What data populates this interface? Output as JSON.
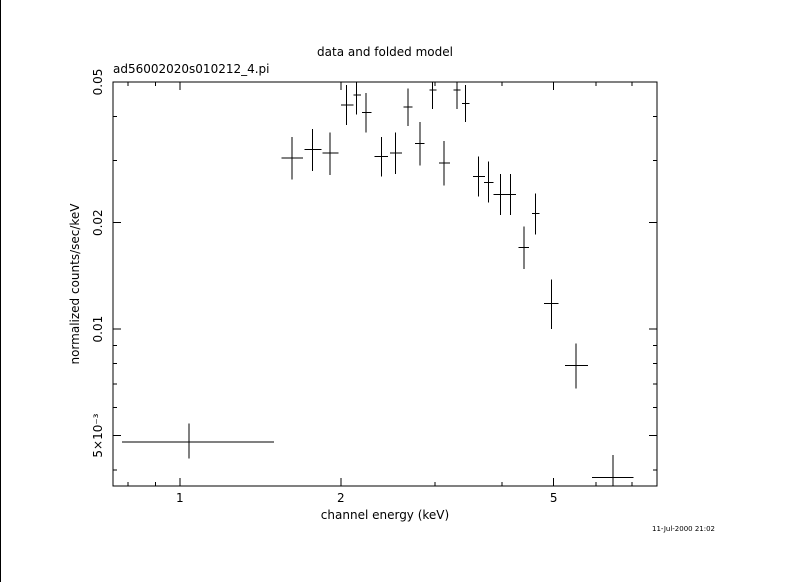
{
  "chart_data": {
    "type": "scatter",
    "title": "data and folded model",
    "subtitle": "ad56002020s010212_4.pi",
    "xlabel": "channel energy (keV)",
    "ylabel": "normalized counts/sec/keV",
    "xscale": "log",
    "yscale": "log",
    "xlim": [
      0.75,
      7.8
    ],
    "ylim": [
      0.0036,
      0.05
    ],
    "x_ticks": [
      {
        "value": 1,
        "label": "1"
      },
      {
        "value": 2,
        "label": "2"
      },
      {
        "value": 5,
        "label": "5"
      }
    ],
    "y_ticks": [
      {
        "value": 0.005,
        "label": "5×10⁻³"
      },
      {
        "value": 0.01,
        "label": "0.01"
      },
      {
        "value": 0.02,
        "label": "0.02"
      },
      {
        "value": 0.05,
        "label": "0.05"
      }
    ],
    "series": [
      {
        "points": [
          {
            "x": 1.04,
            "xlo": 0.78,
            "xhi": 1.5,
            "y": 0.0048,
            "ylo": 0.0043,
            "yhi": 0.0054
          },
          {
            "x": 1.62,
            "xlo": 1.55,
            "xhi": 1.7,
            "y": 0.0305,
            "ylo": 0.0265,
            "yhi": 0.035
          },
          {
            "x": 1.77,
            "xlo": 1.71,
            "xhi": 1.84,
            "y": 0.0322,
            "ylo": 0.028,
            "yhi": 0.0368
          },
          {
            "x": 1.91,
            "xlo": 1.85,
            "xhi": 1.98,
            "y": 0.0315,
            "ylo": 0.0273,
            "yhi": 0.036
          },
          {
            "x": 2.05,
            "xlo": 2.0,
            "xhi": 2.11,
            "y": 0.043,
            "ylo": 0.0378,
            "yhi": 0.049
          },
          {
            "x": 2.14,
            "xlo": 2.11,
            "xhi": 2.18,
            "y": 0.046,
            "ylo": 0.0405,
            "yhi": 0.051
          },
          {
            "x": 2.23,
            "xlo": 2.19,
            "xhi": 2.28,
            "y": 0.041,
            "ylo": 0.036,
            "yhi": 0.0465
          },
          {
            "x": 2.38,
            "xlo": 2.31,
            "xhi": 2.45,
            "y": 0.0308,
            "ylo": 0.027,
            "yhi": 0.035
          },
          {
            "x": 2.53,
            "xlo": 2.47,
            "xhi": 2.6,
            "y": 0.0315,
            "ylo": 0.0275,
            "yhi": 0.036
          },
          {
            "x": 2.67,
            "xlo": 2.62,
            "xhi": 2.72,
            "y": 0.0425,
            "ylo": 0.0375,
            "yhi": 0.048
          },
          {
            "x": 2.81,
            "xlo": 2.75,
            "xhi": 2.87,
            "y": 0.0335,
            "ylo": 0.029,
            "yhi": 0.0385
          },
          {
            "x": 2.97,
            "xlo": 2.93,
            "xhi": 3.02,
            "y": 0.0475,
            "ylo": 0.042,
            "yhi": 0.052
          },
          {
            "x": 3.12,
            "xlo": 3.05,
            "xhi": 3.2,
            "y": 0.0295,
            "ylo": 0.0255,
            "yhi": 0.034
          },
          {
            "x": 3.3,
            "xlo": 3.25,
            "xhi": 3.35,
            "y": 0.0475,
            "ylo": 0.042,
            "yhi": 0.052
          },
          {
            "x": 3.42,
            "xlo": 3.37,
            "xhi": 3.48,
            "y": 0.0435,
            "ylo": 0.0385,
            "yhi": 0.049
          },
          {
            "x": 3.62,
            "xlo": 3.53,
            "xhi": 3.72,
            "y": 0.027,
            "ylo": 0.0237,
            "yhi": 0.0308
          },
          {
            "x": 3.78,
            "xlo": 3.7,
            "xhi": 3.86,
            "y": 0.026,
            "ylo": 0.0228,
            "yhi": 0.0298
          },
          {
            "x": 3.98,
            "xlo": 3.86,
            "xhi": 4.1,
            "y": 0.024,
            "ylo": 0.021,
            "yhi": 0.0275
          },
          {
            "x": 4.15,
            "xlo": 4.06,
            "xhi": 4.25,
            "y": 0.024,
            "ylo": 0.021,
            "yhi": 0.0275
          },
          {
            "x": 4.4,
            "xlo": 4.3,
            "xhi": 4.5,
            "y": 0.017,
            "ylo": 0.0148,
            "yhi": 0.0195
          },
          {
            "x": 4.62,
            "xlo": 4.55,
            "xhi": 4.7,
            "y": 0.0212,
            "ylo": 0.0185,
            "yhi": 0.0242
          },
          {
            "x": 4.95,
            "xlo": 4.8,
            "xhi": 5.1,
            "y": 0.0118,
            "ylo": 0.01,
            "yhi": 0.0138
          },
          {
            "x": 5.5,
            "xlo": 5.25,
            "xhi": 5.8,
            "y": 0.0079,
            "ylo": 0.0068,
            "yhi": 0.0091
          },
          {
            "x": 6.45,
            "xlo": 5.9,
            "xhi": 7.05,
            "y": 0.0038,
            "ylo": 0.0032,
            "yhi": 0.0044
          }
        ]
      }
    ]
  },
  "footer": {
    "timestamp": "11-Jul-2000 21:02"
  }
}
